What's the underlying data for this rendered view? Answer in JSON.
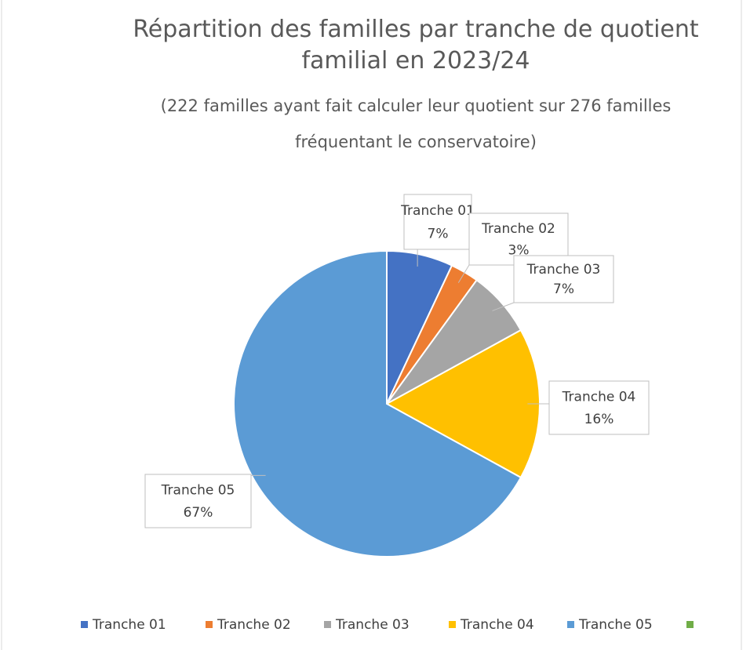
{
  "chart_data": {
    "type": "pie",
    "title": "Répartition des familles par tranche de quotient familial en 2023/24",
    "subtitle": "(222 familles ayant fait calculer leur quotient sur 276 familles fréquentant le conservatoire)",
    "categories": [
      "Tranche 01",
      "Tranche 02",
      "Tranche 03",
      "Tranche 04",
      "Tranche 05",
      null
    ],
    "values": [
      7,
      3,
      7,
      16,
      67,
      0
    ],
    "value_labels": [
      "7%",
      "3%",
      "7%",
      "16%",
      "67%",
      null
    ],
    "colors": [
      "#4472c4",
      "#ed7d31",
      "#a5a5a5",
      "#ffc000",
      "#5b9bd5",
      "#70ad47"
    ],
    "legend": "bottom"
  }
}
